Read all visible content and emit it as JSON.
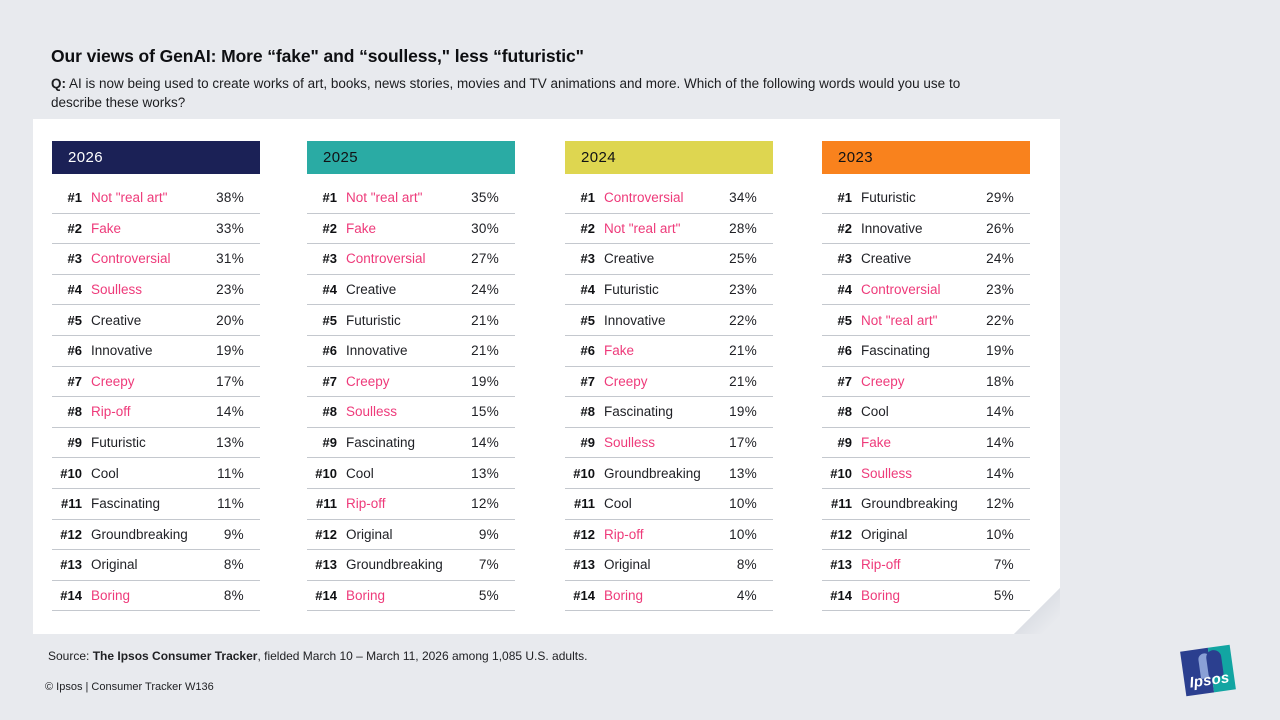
{
  "page": {
    "title": "Our views of GenAI: More “fake\" and “soulless,\" less “futuristic\"",
    "q_label": "Q:",
    "question": " AI is now being used to create works of art, books, news stories, movies and TV animations and more. Which of the following words would you use to describe these works?",
    "source_prefix": "Source: ",
    "source_bold": "The Ipsos Consumer Tracker",
    "source_rest": ", fielded March 10 – March 11, 2026 among 1,085 U.S. adults.",
    "copyright": "© Ipsos | Consumer Tracker W136"
  },
  "logo": {
    "label": "Ipsos"
  },
  "colors": {
    "negative_word": "#ee3a7a",
    "page_bg": "#e8eaee",
    "card_bg": "#ffffff",
    "navy": "#1b2156",
    "teal": "#2aaba4",
    "yellow": "#ded650",
    "orange": "#f9821d"
  },
  "chart_data": {
    "type": "table",
    "title": "Ranked words used to describe GenAI-created works, by year",
    "groups": [
      {
        "year": "2026",
        "header_bg": "#1b2156",
        "header_fg": "#ffffff",
        "rows": [
          {
            "rank": "#1",
            "word": "Not \"real art\"",
            "pct": "38%",
            "negative": true
          },
          {
            "rank": "#2",
            "word": "Fake",
            "pct": "33%",
            "negative": true
          },
          {
            "rank": "#3",
            "word": "Controversial",
            "pct": "31%",
            "negative": true
          },
          {
            "rank": "#4",
            "word": "Soulless",
            "pct": "23%",
            "negative": true
          },
          {
            "rank": "#5",
            "word": "Creative",
            "pct": "20%",
            "negative": false
          },
          {
            "rank": "#6",
            "word": "Innovative",
            "pct": "19%",
            "negative": false
          },
          {
            "rank": "#7",
            "word": "Creepy",
            "pct": "17%",
            "negative": true
          },
          {
            "rank": "#8",
            "word": "Rip-off",
            "pct": "14%",
            "negative": true
          },
          {
            "rank": "#9",
            "word": "Futuristic",
            "pct": "13%",
            "negative": false
          },
          {
            "rank": "#10",
            "word": "Cool",
            "pct": "11%",
            "negative": false
          },
          {
            "rank": "#11",
            "word": "Fascinating",
            "pct": "11%",
            "negative": false
          },
          {
            "rank": "#12",
            "word": "Groundbreaking",
            "pct": "9%",
            "negative": false
          },
          {
            "rank": "#13",
            "word": "Original",
            "pct": "8%",
            "negative": false
          },
          {
            "rank": "#14",
            "word": "Boring",
            "pct": "8%",
            "negative": true
          }
        ]
      },
      {
        "year": "2025",
        "header_bg": "#2aaba4",
        "header_fg": "#111215",
        "rows": [
          {
            "rank": "#1",
            "word": "Not \"real art\"",
            "pct": "35%",
            "negative": true
          },
          {
            "rank": "#2",
            "word": "Fake",
            "pct": "30%",
            "negative": true
          },
          {
            "rank": "#3",
            "word": "Controversial",
            "pct": "27%",
            "negative": true
          },
          {
            "rank": "#4",
            "word": "Creative",
            "pct": "24%",
            "negative": false
          },
          {
            "rank": "#5",
            "word": "Futuristic",
            "pct": "21%",
            "negative": false
          },
          {
            "rank": "#6",
            "word": "Innovative",
            "pct": "21%",
            "negative": false
          },
          {
            "rank": "#7",
            "word": "Creepy",
            "pct": "19%",
            "negative": true
          },
          {
            "rank": "#8",
            "word": "Soulless",
            "pct": "15%",
            "negative": true
          },
          {
            "rank": "#9",
            "word": "Fascinating",
            "pct": "14%",
            "negative": false
          },
          {
            "rank": "#10",
            "word": "Cool",
            "pct": "13%",
            "negative": false
          },
          {
            "rank": "#11",
            "word": "Rip-off",
            "pct": "12%",
            "negative": true
          },
          {
            "rank": "#12",
            "word": "Original",
            "pct": "9%",
            "negative": false
          },
          {
            "rank": "#13",
            "word": "Groundbreaking",
            "pct": "7%",
            "negative": false
          },
          {
            "rank": "#14",
            "word": "Boring",
            "pct": "5%",
            "negative": true
          }
        ]
      },
      {
        "year": "2024",
        "header_bg": "#ded650",
        "header_fg": "#111215",
        "rows": [
          {
            "rank": "#1",
            "word": "Controversial",
            "pct": "34%",
            "negative": true
          },
          {
            "rank": "#2",
            "word": "Not \"real art\"",
            "pct": "28%",
            "negative": true
          },
          {
            "rank": "#3",
            "word": "Creative",
            "pct": "25%",
            "negative": false
          },
          {
            "rank": "#4",
            "word": "Futuristic",
            "pct": "23%",
            "negative": false
          },
          {
            "rank": "#5",
            "word": "Innovative",
            "pct": "22%",
            "negative": false
          },
          {
            "rank": "#6",
            "word": "Fake",
            "pct": "21%",
            "negative": true
          },
          {
            "rank": "#7",
            "word": "Creepy",
            "pct": "21%",
            "negative": true
          },
          {
            "rank": "#8",
            "word": "Fascinating",
            "pct": "19%",
            "negative": false
          },
          {
            "rank": "#9",
            "word": "Soulless",
            "pct": "17%",
            "negative": true
          },
          {
            "rank": "#10",
            "word": "Groundbreaking",
            "pct": "13%",
            "negative": false
          },
          {
            "rank": "#11",
            "word": "Cool",
            "pct": "10%",
            "negative": false
          },
          {
            "rank": "#12",
            "word": "Rip-off",
            "pct": "10%",
            "negative": true
          },
          {
            "rank": "#13",
            "word": "Original",
            "pct": "8%",
            "negative": false
          },
          {
            "rank": "#14",
            "word": "Boring",
            "pct": "4%",
            "negative": true
          }
        ]
      },
      {
        "year": "2023",
        "header_bg": "#f9821d",
        "header_fg": "#111215",
        "rows": [
          {
            "rank": "#1",
            "word": "Futuristic",
            "pct": "29%",
            "negative": false
          },
          {
            "rank": "#2",
            "word": "Innovative",
            "pct": "26%",
            "negative": false
          },
          {
            "rank": "#3",
            "word": "Creative",
            "pct": "24%",
            "negative": false
          },
          {
            "rank": "#4",
            "word": "Controversial",
            "pct": "23%",
            "negative": true
          },
          {
            "rank": "#5",
            "word": "Not \"real art\"",
            "pct": "22%",
            "negative": true
          },
          {
            "rank": "#6",
            "word": "Fascinating",
            "pct": "19%",
            "negative": false
          },
          {
            "rank": "#7",
            "word": "Creepy",
            "pct": "18%",
            "negative": true
          },
          {
            "rank": "#8",
            "word": "Cool",
            "pct": "14%",
            "negative": false
          },
          {
            "rank": "#9",
            "word": "Fake",
            "pct": "14%",
            "negative": true
          },
          {
            "rank": "#10",
            "word": "Soulless",
            "pct": "14%",
            "negative": true
          },
          {
            "rank": "#11",
            "word": "Groundbreaking",
            "pct": "12%",
            "negative": false
          },
          {
            "rank": "#12",
            "word": "Original",
            "pct": "10%",
            "negative": false
          },
          {
            "rank": "#13",
            "word": "Rip-off",
            "pct": "7%",
            "negative": true
          },
          {
            "rank": "#14",
            "word": "Boring",
            "pct": "5%",
            "negative": true
          }
        ]
      }
    ]
  }
}
